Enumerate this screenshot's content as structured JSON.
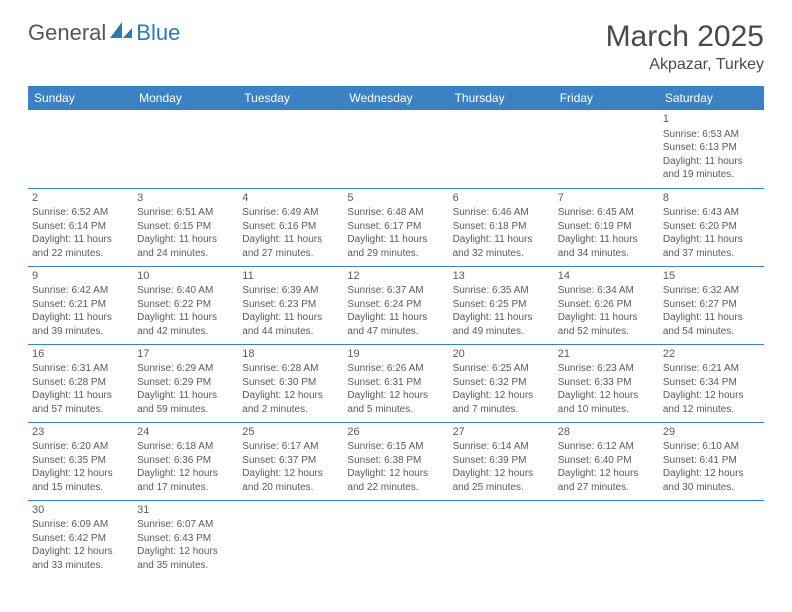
{
  "logo": {
    "text1": "General",
    "text2": "Blue"
  },
  "title": "March 2025",
  "location": "Akpazar, Turkey",
  "colors": {
    "header_bg": "#3b82c4",
    "header_fg": "#ffffff",
    "border": "#3b82c4"
  },
  "weekdays": [
    "Sunday",
    "Monday",
    "Tuesday",
    "Wednesday",
    "Thursday",
    "Friday",
    "Saturday"
  ],
  "weeks": [
    [
      null,
      null,
      null,
      null,
      null,
      null,
      {
        "n": "1",
        "sr": "6:53 AM",
        "ss": "6:13 PM",
        "dl": "11 hours and 19 minutes."
      }
    ],
    [
      {
        "n": "2",
        "sr": "6:52 AM",
        "ss": "6:14 PM",
        "dl": "11 hours and 22 minutes."
      },
      {
        "n": "3",
        "sr": "6:51 AM",
        "ss": "6:15 PM",
        "dl": "11 hours and 24 minutes."
      },
      {
        "n": "4",
        "sr": "6:49 AM",
        "ss": "6:16 PM",
        "dl": "11 hours and 27 minutes."
      },
      {
        "n": "5",
        "sr": "6:48 AM",
        "ss": "6:17 PM",
        "dl": "11 hours and 29 minutes."
      },
      {
        "n": "6",
        "sr": "6:46 AM",
        "ss": "6:18 PM",
        "dl": "11 hours and 32 minutes."
      },
      {
        "n": "7",
        "sr": "6:45 AM",
        "ss": "6:19 PM",
        "dl": "11 hours and 34 minutes."
      },
      {
        "n": "8",
        "sr": "6:43 AM",
        "ss": "6:20 PM",
        "dl": "11 hours and 37 minutes."
      }
    ],
    [
      {
        "n": "9",
        "sr": "6:42 AM",
        "ss": "6:21 PM",
        "dl": "11 hours and 39 minutes."
      },
      {
        "n": "10",
        "sr": "6:40 AM",
        "ss": "6:22 PM",
        "dl": "11 hours and 42 minutes."
      },
      {
        "n": "11",
        "sr": "6:39 AM",
        "ss": "6:23 PM",
        "dl": "11 hours and 44 minutes."
      },
      {
        "n": "12",
        "sr": "6:37 AM",
        "ss": "6:24 PM",
        "dl": "11 hours and 47 minutes."
      },
      {
        "n": "13",
        "sr": "6:35 AM",
        "ss": "6:25 PM",
        "dl": "11 hours and 49 minutes."
      },
      {
        "n": "14",
        "sr": "6:34 AM",
        "ss": "6:26 PM",
        "dl": "11 hours and 52 minutes."
      },
      {
        "n": "15",
        "sr": "6:32 AM",
        "ss": "6:27 PM",
        "dl": "11 hours and 54 minutes."
      }
    ],
    [
      {
        "n": "16",
        "sr": "6:31 AM",
        "ss": "6:28 PM",
        "dl": "11 hours and 57 minutes."
      },
      {
        "n": "17",
        "sr": "6:29 AM",
        "ss": "6:29 PM",
        "dl": "11 hours and 59 minutes."
      },
      {
        "n": "18",
        "sr": "6:28 AM",
        "ss": "6:30 PM",
        "dl": "12 hours and 2 minutes."
      },
      {
        "n": "19",
        "sr": "6:26 AM",
        "ss": "6:31 PM",
        "dl": "12 hours and 5 minutes."
      },
      {
        "n": "20",
        "sr": "6:25 AM",
        "ss": "6:32 PM",
        "dl": "12 hours and 7 minutes."
      },
      {
        "n": "21",
        "sr": "6:23 AM",
        "ss": "6:33 PM",
        "dl": "12 hours and 10 minutes."
      },
      {
        "n": "22",
        "sr": "6:21 AM",
        "ss": "6:34 PM",
        "dl": "12 hours and 12 minutes."
      }
    ],
    [
      {
        "n": "23",
        "sr": "6:20 AM",
        "ss": "6:35 PM",
        "dl": "12 hours and 15 minutes."
      },
      {
        "n": "24",
        "sr": "6:18 AM",
        "ss": "6:36 PM",
        "dl": "12 hours and 17 minutes."
      },
      {
        "n": "25",
        "sr": "6:17 AM",
        "ss": "6:37 PM",
        "dl": "12 hours and 20 minutes."
      },
      {
        "n": "26",
        "sr": "6:15 AM",
        "ss": "6:38 PM",
        "dl": "12 hours and 22 minutes."
      },
      {
        "n": "27",
        "sr": "6:14 AM",
        "ss": "6:39 PM",
        "dl": "12 hours and 25 minutes."
      },
      {
        "n": "28",
        "sr": "6:12 AM",
        "ss": "6:40 PM",
        "dl": "12 hours and 27 minutes."
      },
      {
        "n": "29",
        "sr": "6:10 AM",
        "ss": "6:41 PM",
        "dl": "12 hours and 30 minutes."
      }
    ],
    [
      {
        "n": "30",
        "sr": "6:09 AM",
        "ss": "6:42 PM",
        "dl": "12 hours and 33 minutes."
      },
      {
        "n": "31",
        "sr": "6:07 AM",
        "ss": "6:43 PM",
        "dl": "12 hours and 35 minutes."
      },
      null,
      null,
      null,
      null,
      null
    ]
  ],
  "labels": {
    "sunrise": "Sunrise:",
    "sunset": "Sunset:",
    "daylight": "Daylight:"
  }
}
